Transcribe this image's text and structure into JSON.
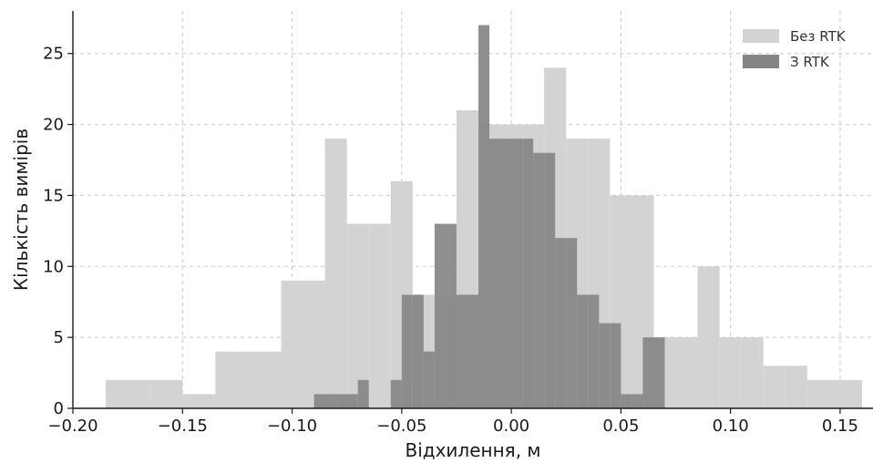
{
  "chart_data": {
    "type": "bar",
    "title": "",
    "xlabel": "Відхилення, м",
    "ylabel": "Кількість вимірів",
    "xlim": [
      -0.2,
      0.165
    ],
    "ylim": [
      0,
      28
    ],
    "xticks": [
      -0.2,
      -0.15,
      -0.1,
      -0.05,
      0.0,
      0.05,
      0.1,
      0.15
    ],
    "xtick_labels": [
      "−0.20",
      "−0.15",
      "−0.10",
      "−0.05",
      "0.00",
      "0.05",
      "0.10",
      "0.15"
    ],
    "yticks": [
      0,
      5,
      10,
      15,
      20,
      25
    ],
    "ytick_labels": [
      "0",
      "5",
      "10",
      "15",
      "20",
      "25"
    ],
    "grid": true,
    "legend_position": "top-right",
    "series": [
      {
        "name": "Без RTK",
        "color": "#d3d3d3",
        "bin_edges": [
          -0.185,
          -0.165,
          -0.15,
          -0.135,
          -0.125,
          -0.115,
          -0.105,
          -0.095,
          -0.085,
          -0.075,
          -0.065,
          -0.055,
          -0.045,
          -0.035,
          -0.025,
          -0.015,
          -0.005,
          0.005,
          0.015,
          0.025,
          0.035,
          0.045,
          0.055,
          0.065,
          0.075,
          0.085,
          0.095,
          0.105,
          0.115,
          0.125,
          0.135,
          0.145,
          0.16
        ],
        "counts": [
          2,
          2,
          1,
          4,
          4,
          4,
          9,
          9,
          19,
          13,
          13,
          16,
          8,
          8,
          21,
          20,
          20,
          20,
          24,
          19,
          19,
          15,
          15,
          5,
          5,
          10,
          5,
          5,
          3,
          3,
          2,
          2
        ]
      },
      {
        "name": "З RTK",
        "color": "#858585",
        "bin_edges": [
          -0.09,
          -0.08,
          -0.07,
          -0.065,
          -0.06,
          -0.055,
          -0.05,
          -0.045,
          -0.04,
          -0.035,
          -0.03,
          -0.025,
          -0.02,
          -0.015,
          -0.01,
          -0.005,
          0.0,
          0.005,
          0.01,
          0.015,
          0.02,
          0.025,
          0.03,
          0.035,
          0.04,
          0.045,
          0.05,
          0.055,
          0.06,
          0.065,
          0.07
        ],
        "counts": [
          1,
          1,
          2,
          0,
          0,
          2,
          8,
          8,
          4,
          13,
          13,
          8,
          8,
          27,
          19,
          19,
          19,
          19,
          18,
          18,
          12,
          12,
          8,
          8,
          6,
          6,
          1,
          1,
          5,
          5
        ]
      }
    ]
  }
}
